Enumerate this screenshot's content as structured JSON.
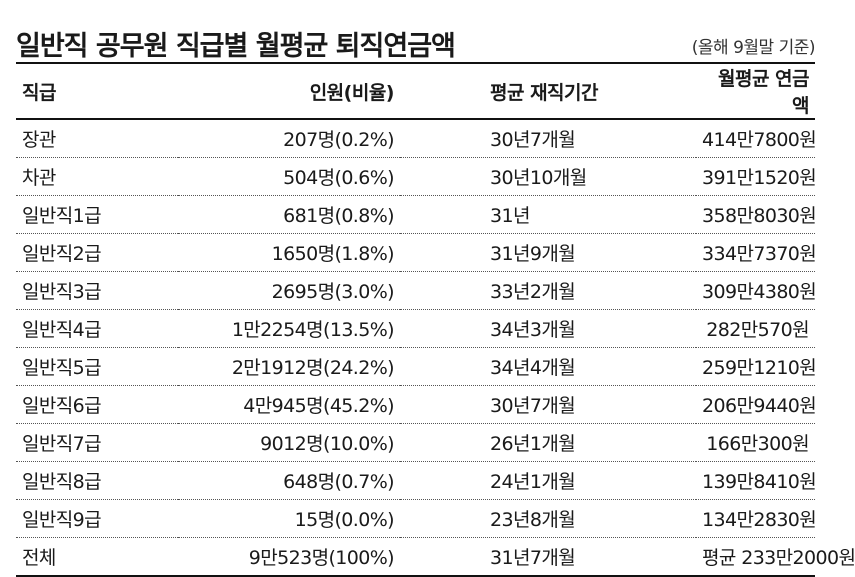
{
  "header": {
    "title": "일반직 공무원 직급별 월평균 퇴직연금액",
    "note": "(올해 9월말 기준)"
  },
  "table": {
    "columns": [
      "직급",
      "인원(비율)",
      "평균 재직기간",
      "월평균 연금액"
    ],
    "rows": [
      [
        "장관",
        "207명(0.2%)",
        "30년7개월",
        "414만7800원"
      ],
      [
        "차관",
        "504명(0.6%)",
        "30년10개월",
        "391만1520원"
      ],
      [
        "일반직1급",
        "681명(0.8%)",
        "31년",
        "358만8030원"
      ],
      [
        "일반직2급",
        "1650명(1.8%)",
        "31년9개월",
        "334만7370원"
      ],
      [
        "일반직3급",
        "2695명(3.0%)",
        "33년2개월",
        "309만4380원"
      ],
      [
        "일반직4급",
        "1만2254명(13.5%)",
        "34년3개월",
        "282만570원"
      ],
      [
        "일반직5급",
        "2만1912명(24.2%)",
        "34년4개월",
        "259만1210원"
      ],
      [
        "일반직6급",
        "4만945명(45.2%)",
        "30년7개월",
        "206만9440원"
      ],
      [
        "일반직7급",
        "9012명(10.0%)",
        "26년1개월",
        "166만300원"
      ],
      [
        "일반직8급",
        "648명(0.7%)",
        "24년1개월",
        "139만8410원"
      ],
      [
        "일반직9급",
        "15명(0.0%)",
        "23년8개월",
        "134만2830원"
      ],
      [
        "전체",
        "9만523명(100%)",
        "31년7개월",
        "평균 233만2000원"
      ]
    ]
  }
}
